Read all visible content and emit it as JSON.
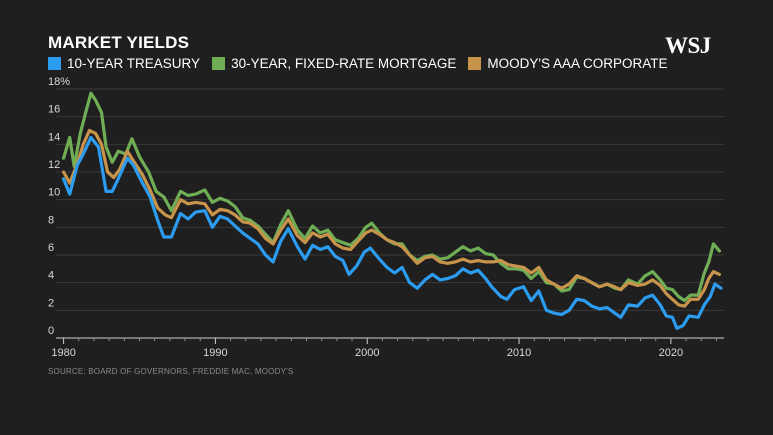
{
  "title": "MARKET YIELDS",
  "logo_text": "WSJ",
  "source": "SOURCE: BOARD OF GOVERNORS, FREDDIE MAC, MOODY'S",
  "colors": {
    "background": "#1f1f1f",
    "grid": "#3a3a3a",
    "axis": "#cfcfcf"
  },
  "chart_data": {
    "type": "line",
    "title": "MARKET YIELDS",
    "xlabel": "",
    "ylabel": "",
    "xlim": [
      1979.5,
      2023.5
    ],
    "ylim": [
      0,
      18
    ],
    "grid": true,
    "legend_position": "top-left",
    "x_ticks": [
      1980,
      1990,
      2000,
      2010,
      2020
    ],
    "x_tick_labels": [
      "1980",
      "1990",
      "2000",
      "2010",
      "2020"
    ],
    "y_ticks": [
      0,
      2,
      4,
      6,
      8,
      10,
      12,
      14,
      16,
      18
    ],
    "y_tick_labels": [
      "0",
      "2",
      "4",
      "6",
      "8",
      "10",
      "12",
      "14",
      "16",
      "18%"
    ],
    "series": [
      {
        "name": "10-YEAR TREASURY",
        "color": "#2b9cf0",
        "points": [
          [
            1980.0,
            11.5
          ],
          [
            1980.4,
            10.4
          ],
          [
            1980.9,
            12.5
          ],
          [
            1981.3,
            13.3
          ],
          [
            1981.8,
            14.5
          ],
          [
            1982.3,
            13.8
          ],
          [
            1982.8,
            10.6
          ],
          [
            1983.2,
            10.6
          ],
          [
            1983.6,
            11.5
          ],
          [
            1984.2,
            13.0
          ],
          [
            1984.6,
            12.5
          ],
          [
            1985.2,
            11.2
          ],
          [
            1985.7,
            10.2
          ],
          [
            1986.2,
            8.5
          ],
          [
            1986.6,
            7.3
          ],
          [
            1987.1,
            7.3
          ],
          [
            1987.7,
            9.0
          ],
          [
            1988.2,
            8.6
          ],
          [
            1988.7,
            9.1
          ],
          [
            1989.3,
            9.2
          ],
          [
            1989.8,
            8.0
          ],
          [
            1990.3,
            8.8
          ],
          [
            1990.8,
            8.6
          ],
          [
            1991.3,
            8.1
          ],
          [
            1991.8,
            7.6
          ],
          [
            1992.3,
            7.2
          ],
          [
            1992.8,
            6.8
          ],
          [
            1993.3,
            6.0
          ],
          [
            1993.8,
            5.5
          ],
          [
            1994.3,
            7.0
          ],
          [
            1994.8,
            7.9
          ],
          [
            1995.4,
            6.6
          ],
          [
            1995.9,
            5.7
          ],
          [
            1996.4,
            6.7
          ],
          [
            1996.9,
            6.4
          ],
          [
            1997.4,
            6.6
          ],
          [
            1997.9,
            5.9
          ],
          [
            1998.4,
            5.6
          ],
          [
            1998.8,
            4.6
          ],
          [
            1999.3,
            5.2
          ],
          [
            1999.8,
            6.2
          ],
          [
            2000.2,
            6.5
          ],
          [
            2000.8,
            5.7
          ],
          [
            2001.3,
            5.1
          ],
          [
            2001.8,
            4.7
          ],
          [
            2002.3,
            5.1
          ],
          [
            2002.8,
            4.0
          ],
          [
            2003.3,
            3.6
          ],
          [
            2003.8,
            4.2
          ],
          [
            2004.3,
            4.6
          ],
          [
            2004.8,
            4.2
          ],
          [
            2005.3,
            4.3
          ],
          [
            2005.8,
            4.5
          ],
          [
            2006.3,
            5.0
          ],
          [
            2006.8,
            4.7
          ],
          [
            2007.3,
            4.9
          ],
          [
            2007.8,
            4.3
          ],
          [
            2008.2,
            3.7
          ],
          [
            2008.8,
            3.0
          ],
          [
            2009.2,
            2.8
          ],
          [
            2009.7,
            3.5
          ],
          [
            2010.3,
            3.7
          ],
          [
            2010.8,
            2.7
          ],
          [
            2011.3,
            3.4
          ],
          [
            2011.8,
            2.0
          ],
          [
            2012.3,
            1.8
          ],
          [
            2012.8,
            1.7
          ],
          [
            2013.3,
            2.0
          ],
          [
            2013.8,
            2.8
          ],
          [
            2014.3,
            2.7
          ],
          [
            2014.8,
            2.3
          ],
          [
            2015.3,
            2.1
          ],
          [
            2015.8,
            2.2
          ],
          [
            2016.3,
            1.8
          ],
          [
            2016.7,
            1.5
          ],
          [
            2017.2,
            2.4
          ],
          [
            2017.8,
            2.3
          ],
          [
            2018.3,
            2.9
          ],
          [
            2018.8,
            3.1
          ],
          [
            2019.3,
            2.4
          ],
          [
            2019.7,
            1.6
          ],
          [
            2020.1,
            1.5
          ],
          [
            2020.4,
            0.7
          ],
          [
            2020.8,
            0.9
          ],
          [
            2021.2,
            1.6
          ],
          [
            2021.8,
            1.5
          ],
          [
            2022.2,
            2.4
          ],
          [
            2022.6,
            3.0
          ],
          [
            2022.9,
            3.9
          ],
          [
            2023.3,
            3.6
          ]
        ]
      },
      {
        "name": "30-YEAR, FIXED-RATE MORTGAGE",
        "color": "#6fae55",
        "points": [
          [
            1980.0,
            13.0
          ],
          [
            1980.4,
            14.5
          ],
          [
            1980.7,
            12.4
          ],
          [
            1981.1,
            14.8
          ],
          [
            1981.5,
            16.5
          ],
          [
            1981.8,
            17.7
          ],
          [
            1982.1,
            17.2
          ],
          [
            1982.5,
            16.3
          ],
          [
            1982.8,
            13.8
          ],
          [
            1983.2,
            12.7
          ],
          [
            1983.6,
            13.5
          ],
          [
            1984.1,
            13.3
          ],
          [
            1984.5,
            14.4
          ],
          [
            1985.0,
            13.1
          ],
          [
            1985.6,
            12.0
          ],
          [
            1986.1,
            10.6
          ],
          [
            1986.6,
            10.2
          ],
          [
            1987.1,
            9.2
          ],
          [
            1987.7,
            10.6
          ],
          [
            1988.2,
            10.3
          ],
          [
            1988.7,
            10.4
          ],
          [
            1989.3,
            10.7
          ],
          [
            1989.8,
            9.8
          ],
          [
            1990.3,
            10.1
          ],
          [
            1990.8,
            9.9
          ],
          [
            1991.3,
            9.5
          ],
          [
            1991.8,
            8.7
          ],
          [
            1992.3,
            8.5
          ],
          [
            1992.8,
            8.1
          ],
          [
            1993.3,
            7.5
          ],
          [
            1993.8,
            6.9
          ],
          [
            1994.3,
            8.2
          ],
          [
            1994.8,
            9.2
          ],
          [
            1995.4,
            7.8
          ],
          [
            1995.9,
            7.2
          ],
          [
            1996.4,
            8.1
          ],
          [
            1996.9,
            7.6
          ],
          [
            1997.4,
            7.8
          ],
          [
            1997.9,
            7.1
          ],
          [
            1998.4,
            6.9
          ],
          [
            1998.9,
            6.7
          ],
          [
            1999.4,
            7.2
          ],
          [
            1999.9,
            8.0
          ],
          [
            2000.3,
            8.3
          ],
          [
            2000.8,
            7.6
          ],
          [
            2001.3,
            7.1
          ],
          [
            2001.8,
            6.8
          ],
          [
            2002.3,
            6.8
          ],
          [
            2002.8,
            6.0
          ],
          [
            2003.3,
            5.6
          ],
          [
            2003.8,
            5.9
          ],
          [
            2004.3,
            6.0
          ],
          [
            2004.8,
            5.7
          ],
          [
            2005.3,
            5.8
          ],
          [
            2005.8,
            6.2
          ],
          [
            2006.3,
            6.6
          ],
          [
            2006.8,
            6.3
          ],
          [
            2007.3,
            6.5
          ],
          [
            2007.8,
            6.1
          ],
          [
            2008.3,
            6.0
          ],
          [
            2008.8,
            5.4
          ],
          [
            2009.3,
            5.0
          ],
          [
            2009.8,
            5.0
          ],
          [
            2010.3,
            4.9
          ],
          [
            2010.8,
            4.3
          ],
          [
            2011.3,
            4.8
          ],
          [
            2011.8,
            4.0
          ],
          [
            2012.3,
            3.9
          ],
          [
            2012.8,
            3.4
          ],
          [
            2013.3,
            3.5
          ],
          [
            2013.8,
            4.4
          ],
          [
            2014.3,
            4.3
          ],
          [
            2014.8,
            4.0
          ],
          [
            2015.3,
            3.7
          ],
          [
            2015.8,
            3.9
          ],
          [
            2016.3,
            3.6
          ],
          [
            2016.7,
            3.5
          ],
          [
            2017.2,
            4.2
          ],
          [
            2017.8,
            3.9
          ],
          [
            2018.3,
            4.5
          ],
          [
            2018.8,
            4.8
          ],
          [
            2019.3,
            4.2
          ],
          [
            2019.7,
            3.6
          ],
          [
            2020.1,
            3.5
          ],
          [
            2020.5,
            3.0
          ],
          [
            2020.9,
            2.7
          ],
          [
            2021.3,
            3.1
          ],
          [
            2021.8,
            3.1
          ],
          [
            2022.2,
            4.7
          ],
          [
            2022.5,
            5.5
          ],
          [
            2022.8,
            6.8
          ],
          [
            2023.2,
            6.3
          ]
        ]
      },
      {
        "name": "MOODY'S AAA CORPORATE",
        "color": "#c8934a",
        "points": [
          [
            1980.0,
            12.0
          ],
          [
            1980.4,
            11.2
          ],
          [
            1980.9,
            12.6
          ],
          [
            1981.3,
            14.0
          ],
          [
            1981.7,
            15.0
          ],
          [
            1982.1,
            14.8
          ],
          [
            1982.5,
            14.0
          ],
          [
            1982.9,
            12.0
          ],
          [
            1983.3,
            11.6
          ],
          [
            1983.7,
            12.2
          ],
          [
            1984.2,
            13.5
          ],
          [
            1984.6,
            12.8
          ],
          [
            1985.2,
            11.8
          ],
          [
            1985.7,
            10.7
          ],
          [
            1986.2,
            9.4
          ],
          [
            1986.7,
            8.9
          ],
          [
            1987.1,
            8.7
          ],
          [
            1987.7,
            10.0
          ],
          [
            1988.2,
            9.7
          ],
          [
            1988.7,
            9.8
          ],
          [
            1989.3,
            9.7
          ],
          [
            1989.8,
            8.9
          ],
          [
            1990.3,
            9.3
          ],
          [
            1990.8,
            9.2
          ],
          [
            1991.3,
            8.9
          ],
          [
            1991.8,
            8.4
          ],
          [
            1992.3,
            8.3
          ],
          [
            1992.8,
            7.9
          ],
          [
            1993.3,
            7.2
          ],
          [
            1993.8,
            6.8
          ],
          [
            1994.3,
            7.8
          ],
          [
            1994.8,
            8.6
          ],
          [
            1995.4,
            7.4
          ],
          [
            1995.9,
            6.9
          ],
          [
            1996.4,
            7.6
          ],
          [
            1996.9,
            7.3
          ],
          [
            1997.4,
            7.5
          ],
          [
            1997.9,
            6.8
          ],
          [
            1998.4,
            6.5
          ],
          [
            1998.9,
            6.4
          ],
          [
            1999.4,
            7.0
          ],
          [
            1999.9,
            7.6
          ],
          [
            2000.3,
            7.8
          ],
          [
            2000.8,
            7.5
          ],
          [
            2001.3,
            7.1
          ],
          [
            2001.8,
            6.9
          ],
          [
            2002.3,
            6.6
          ],
          [
            2002.8,
            6.0
          ],
          [
            2003.3,
            5.4
          ],
          [
            2003.8,
            5.8
          ],
          [
            2004.3,
            5.9
          ],
          [
            2004.8,
            5.5
          ],
          [
            2005.3,
            5.4
          ],
          [
            2005.8,
            5.5
          ],
          [
            2006.3,
            5.7
          ],
          [
            2006.8,
            5.5
          ],
          [
            2007.3,
            5.6
          ],
          [
            2007.8,
            5.5
          ],
          [
            2008.3,
            5.5
          ],
          [
            2008.8,
            5.6
          ],
          [
            2009.3,
            5.3
          ],
          [
            2009.8,
            5.2
          ],
          [
            2010.3,
            5.1
          ],
          [
            2010.8,
            4.7
          ],
          [
            2011.3,
            5.1
          ],
          [
            2011.8,
            4.2
          ],
          [
            2012.3,
            3.9
          ],
          [
            2012.8,
            3.6
          ],
          [
            2013.3,
            3.9
          ],
          [
            2013.8,
            4.5
          ],
          [
            2014.3,
            4.3
          ],
          [
            2014.8,
            4.0
          ],
          [
            2015.3,
            3.7
          ],
          [
            2015.8,
            3.9
          ],
          [
            2016.3,
            3.7
          ],
          [
            2016.7,
            3.5
          ],
          [
            2017.2,
            4.0
          ],
          [
            2017.8,
            3.8
          ],
          [
            2018.3,
            3.9
          ],
          [
            2018.8,
            4.2
          ],
          [
            2019.3,
            3.8
          ],
          [
            2019.7,
            3.2
          ],
          [
            2020.1,
            2.8
          ],
          [
            2020.5,
            2.4
          ],
          [
            2020.9,
            2.3
          ],
          [
            2021.3,
            2.8
          ],
          [
            2021.8,
            2.8
          ],
          [
            2022.2,
            3.5
          ],
          [
            2022.5,
            4.3
          ],
          [
            2022.8,
            4.8
          ],
          [
            2023.2,
            4.6
          ]
        ]
      }
    ]
  }
}
